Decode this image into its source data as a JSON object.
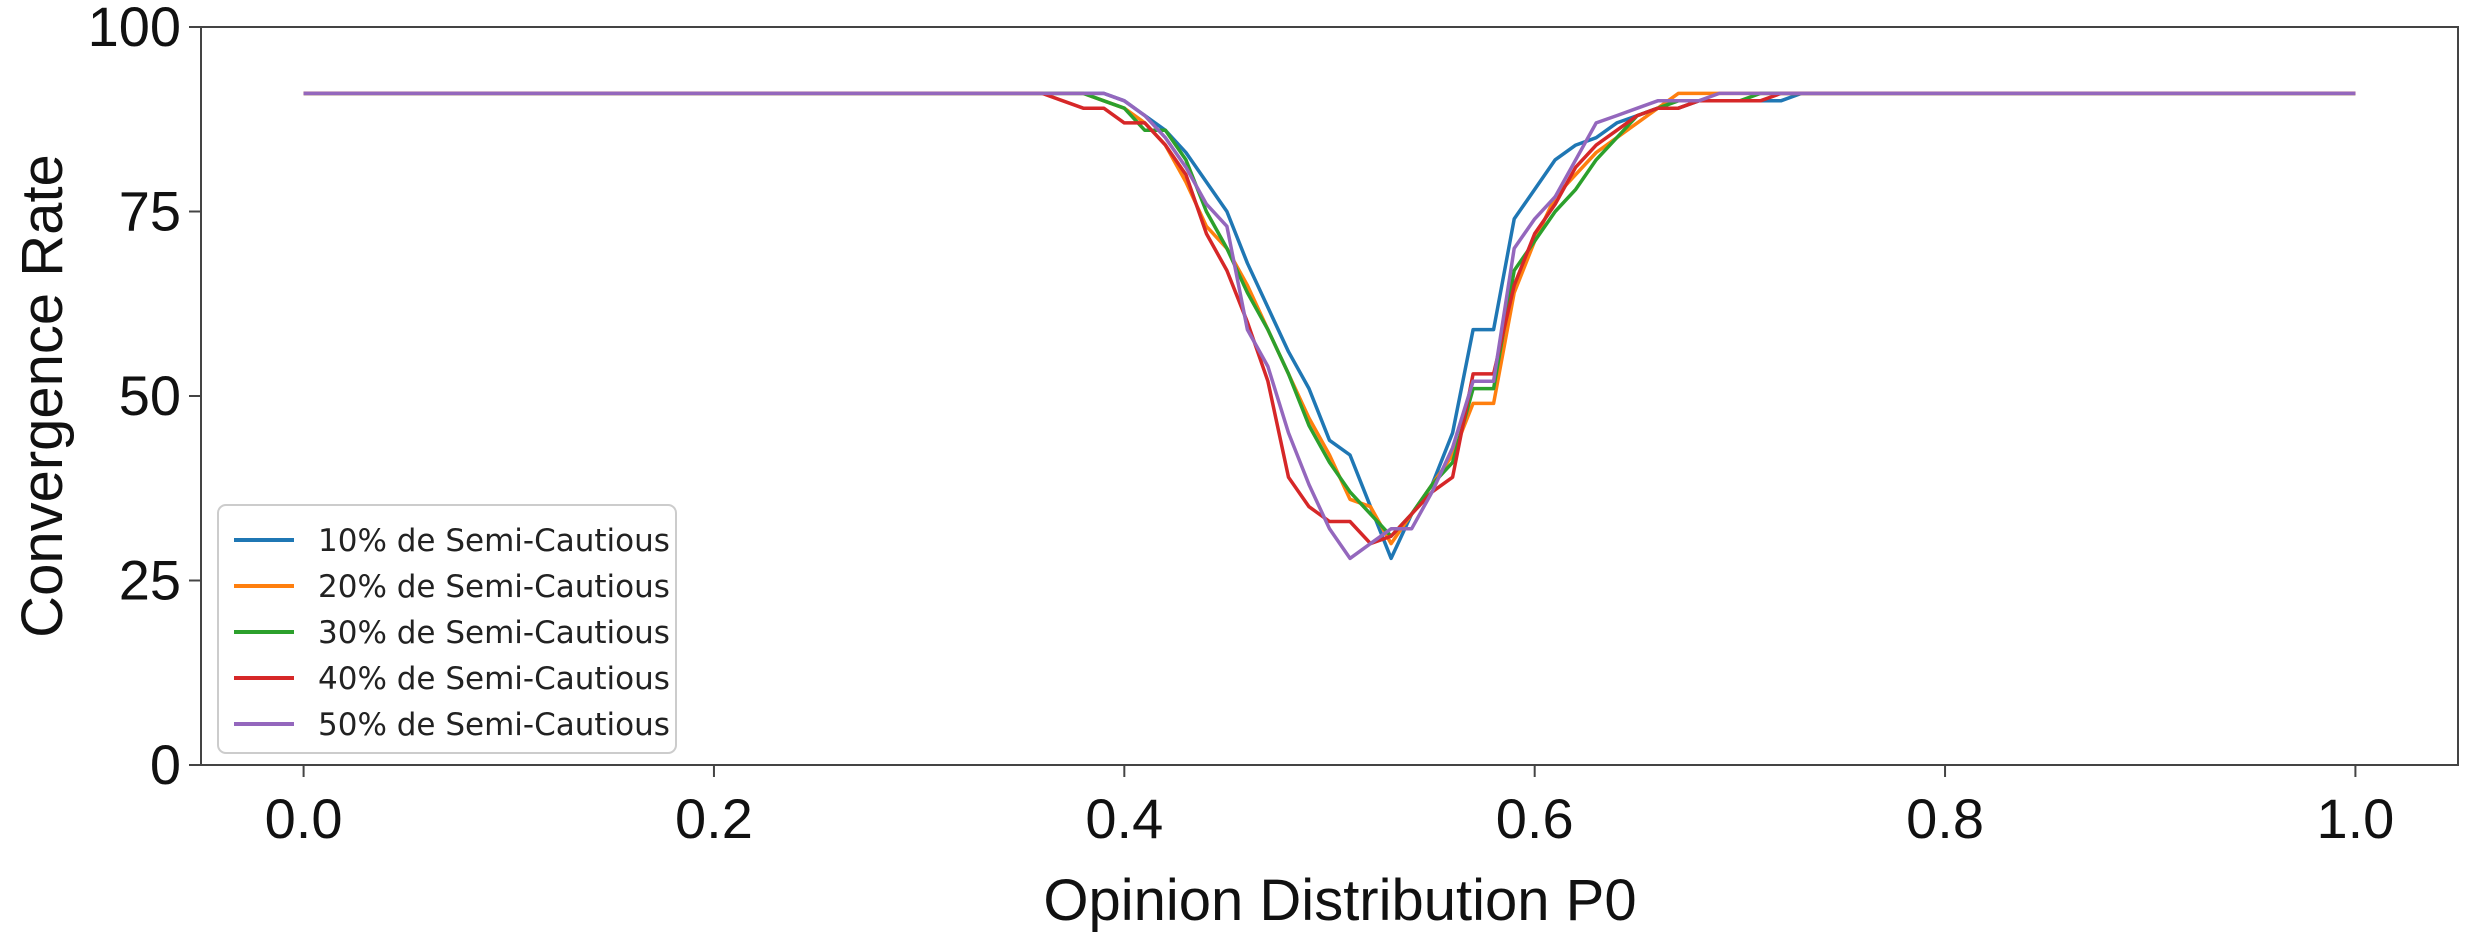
{
  "chart_data": {
    "type": "line",
    "title": "",
    "xlabel": "Opinion Distribution P0",
    "ylabel": "Convergence Rate",
    "xlim": [
      -0.05,
      1.05
    ],
    "ylim": [
      0,
      100
    ],
    "xticks": [
      0.0,
      0.2,
      0.4,
      0.6,
      0.8,
      1.0
    ],
    "xtick_labels": [
      "0.0",
      "0.2",
      "0.4",
      "0.6",
      "0.8",
      "1.0"
    ],
    "yticks": [
      0,
      25,
      50,
      75,
      100
    ],
    "ytick_labels": [
      "0",
      "25",
      "50",
      "75",
      "100"
    ],
    "grid": false,
    "legend_position": "lower-left",
    "series": [
      {
        "name": "10% de Semi-Cautious",
        "color": "#1f77b4",
        "x": [
          0.0,
          0.36,
          0.37,
          0.38,
          0.39,
          0.4,
          0.41,
          0.42,
          0.43,
          0.44,
          0.45,
          0.46,
          0.47,
          0.48,
          0.49,
          0.5,
          0.51,
          0.52,
          0.53,
          0.54,
          0.55,
          0.56,
          0.57,
          0.58,
          0.59,
          0.6,
          0.61,
          0.62,
          0.63,
          0.64,
          0.65,
          0.66,
          0.67,
          0.68,
          0.69,
          0.7,
          0.71,
          0.72,
          0.73,
          0.74,
          0.75,
          1.0
        ],
        "y": [
          91,
          91,
          91,
          91,
          91,
          90,
          88,
          86,
          83,
          79,
          75,
          68,
          62,
          56,
          51,
          44,
          42,
          35,
          28,
          34,
          38,
          45,
          59,
          59,
          74,
          78,
          82,
          84,
          85,
          87,
          88,
          89,
          89,
          90,
          90,
          90,
          90,
          90,
          91,
          91,
          91,
          91
        ]
      },
      {
        "name": "20% de Semi-Cautious",
        "color": "#ff7f0e",
        "x": [
          0.0,
          0.36,
          0.37,
          0.38,
          0.39,
          0.4,
          0.41,
          0.42,
          0.43,
          0.44,
          0.45,
          0.46,
          0.47,
          0.48,
          0.49,
          0.5,
          0.51,
          0.52,
          0.53,
          0.54,
          0.55,
          0.56,
          0.57,
          0.58,
          0.59,
          0.6,
          0.61,
          0.62,
          0.63,
          0.64,
          0.65,
          0.66,
          0.67,
          0.68,
          0.69,
          0.7,
          0.71,
          0.72,
          0.73,
          0.74,
          0.75,
          1.0
        ],
        "y": [
          91,
          91,
          91,
          91,
          90,
          89,
          87,
          84,
          79,
          73,
          70,
          65,
          59,
          53,
          47,
          42,
          36,
          35,
          30,
          34,
          38,
          42,
          49,
          49,
          64,
          71,
          77,
          80,
          83,
          85,
          87,
          89,
          91,
          91,
          91,
          91,
          91,
          91,
          91,
          91,
          91,
          91
        ]
      },
      {
        "name": "30% de Semi-Cautious",
        "color": "#2ca02c",
        "x": [
          0.0,
          0.36,
          0.37,
          0.38,
          0.39,
          0.4,
          0.41,
          0.42,
          0.43,
          0.44,
          0.45,
          0.46,
          0.47,
          0.48,
          0.49,
          0.5,
          0.51,
          0.52,
          0.53,
          0.54,
          0.55,
          0.56,
          0.57,
          0.58,
          0.59,
          0.6,
          0.61,
          0.62,
          0.63,
          0.64,
          0.65,
          0.66,
          0.67,
          0.68,
          0.69,
          0.7,
          0.71,
          0.72,
          0.73,
          0.74,
          0.75,
          1.0
        ],
        "y": [
          91,
          91,
          91,
          91,
          90,
          89,
          86,
          86,
          82,
          75,
          70,
          64,
          59,
          53,
          46,
          41,
          37,
          34,
          31,
          34,
          38,
          41,
          51,
          51,
          67,
          71,
          75,
          78,
          82,
          85,
          88,
          89,
          90,
          90,
          90,
          90,
          91,
          91,
          91,
          91,
          91,
          91
        ]
      },
      {
        "name": "40% de Semi-Cautious",
        "color": "#d62728",
        "x": [
          0.0,
          0.36,
          0.37,
          0.38,
          0.39,
          0.4,
          0.41,
          0.42,
          0.43,
          0.44,
          0.45,
          0.46,
          0.47,
          0.48,
          0.49,
          0.5,
          0.51,
          0.52,
          0.53,
          0.54,
          0.55,
          0.56,
          0.57,
          0.58,
          0.59,
          0.6,
          0.61,
          0.62,
          0.63,
          0.64,
          0.65,
          0.66,
          0.67,
          0.68,
          0.69,
          0.7,
          0.71,
          0.72,
          0.73,
          0.74,
          0.75,
          1.0
        ],
        "y": [
          91,
          91,
          90,
          89,
          89,
          87,
          87,
          84,
          80,
          72,
          67,
          60,
          52,
          39,
          35,
          33,
          33,
          30,
          31,
          34,
          37,
          39,
          53,
          53,
          65,
          72,
          76,
          81,
          84,
          86,
          88,
          89,
          89,
          90,
          90,
          90,
          90,
          91,
          91,
          91,
          91,
          91
        ]
      },
      {
        "name": "50% de Semi-Cautious",
        "color": "#9467bd",
        "x": [
          0.0,
          0.36,
          0.37,
          0.38,
          0.39,
          0.4,
          0.41,
          0.42,
          0.43,
          0.44,
          0.45,
          0.46,
          0.47,
          0.48,
          0.49,
          0.5,
          0.51,
          0.52,
          0.53,
          0.54,
          0.55,
          0.56,
          0.57,
          0.58,
          0.59,
          0.6,
          0.61,
          0.62,
          0.63,
          0.64,
          0.65,
          0.66,
          0.67,
          0.68,
          0.69,
          0.7,
          0.71,
          0.72,
          0.73,
          0.74,
          0.75,
          1.0
        ],
        "y": [
          91,
          91,
          91,
          91,
          91,
          90,
          88,
          85,
          81,
          76,
          73,
          59,
          54,
          45,
          38,
          32,
          28,
          30,
          32,
          32,
          37,
          43,
          52,
          52,
          70,
          74,
          77,
          82,
          87,
          88,
          89,
          90,
          90,
          90,
          91,
          91,
          91,
          91,
          91,
          91,
          91,
          91
        ]
      }
    ]
  }
}
